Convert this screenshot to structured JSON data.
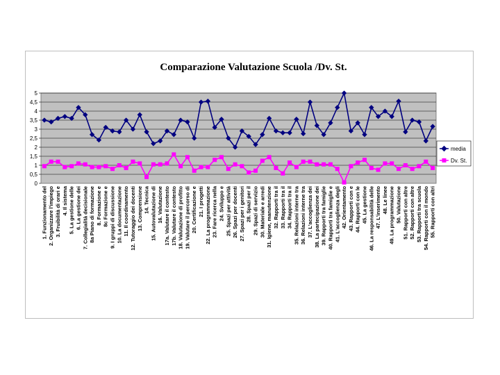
{
  "chart_data": {
    "type": "line",
    "title": "Comparazione Valutazione Scuola /Dv. St.",
    "xlabel": "",
    "ylabel": "",
    "ylim": [
      0,
      5
    ],
    "yticks": [
      "0",
      "0,5",
      "1",
      "1,5",
      "2",
      "2,5",
      "3",
      "3,5",
      "4",
      "4,5",
      "5"
    ],
    "grid": true,
    "legend_position": "right",
    "categories": [
      "1. Funzionamento del",
      "2. Organizzare l'impiego",
      "3. Fruibilità di orari e",
      "4. Il sistema",
      "5. La gestione delle",
      "6. La gestione dei",
      "7. Collegialità decisionale",
      "8a Piano di formazione",
      "8. Formazione e",
      "8c Formazione e",
      "9. I gruppi di discussione",
      "10. La documentazione",
      "11. Il coordinamento",
      "12. Tutoraggio dei docenti",
      "13. Comprensione",
      "14. Tecnica",
      "15. Autovalutazione di",
      "16. Valutazione",
      "17a. Valutare il contesto",
      "17b. Valutare il contesto",
      "18. Valutazione di profitto",
      "19. Valutare il percorso di",
      "20. Certificazione e",
      "21. I progetti",
      "22. La programmazione",
      "23. Fare ricerca nella",
      "24. Sviluppo e",
      "25. Spazi per attività",
      "26. Spazi per docenti",
      "27. Spazi per i genitori",
      "28. Spazi per il",
      "29. Spazi di servizio",
      "30. Materiale e arredi",
      "31. Igiene, manutenzione",
      "32. Rapporti tra il",
      "33. Rapporti tra il",
      "34. Rapporti tra il",
      "35. Relazioni interne tra",
      "36. Relazioni interne tra",
      "37. L'accoglienza dei",
      "38. La partecipazione dei",
      "39. Rapporti tra famiglie",
      "40. Rapporti tra famiglie e",
      "41. L'accoglienza degli",
      "42. Orientamento",
      "43. Rapporti con e",
      "44. Rapporti con le",
      "45. La gestione",
      "46. La responsabilità delle",
      "47. L'inserimento",
      "48. Le linee",
      "49. La programmazione",
      "50. Valutazione",
      "51. Rapporti con altre",
      "52. Rapporti con altre",
      "53. Rapporti tra scuola",
      "54. Rapporti con il mondo",
      "55. Rapporti con altri"
    ],
    "series": [
      {
        "name": "media",
        "color": "#000080",
        "marker": "diamond",
        "values": [
          3.5,
          3.4,
          3.6,
          3.7,
          3.6,
          4.2,
          3.8,
          2.7,
          2.4,
          3.1,
          2.9,
          2.85,
          3.5,
          3.0,
          3.8,
          2.85,
          2.2,
          2.35,
          2.9,
          2.7,
          3.5,
          3.4,
          2.5,
          4.5,
          4.55,
          3.1,
          3.55,
          2.5,
          2.0,
          2.9,
          2.6,
          2.15,
          2.7,
          3.6,
          2.9,
          2.8,
          2.8,
          3.55,
          2.75,
          4.5,
          3.2,
          2.7,
          3.35,
          4.2,
          5.0,
          2.9,
          3.35,
          2.7,
          4.2,
          3.7,
          4.0,
          3.7,
          4.55,
          2.85,
          3.5,
          3.4,
          2.35,
          3.15
        ]
      },
      {
        "name": "Dv. St.",
        "color": "#ff00ff",
        "marker": "square",
        "values": [
          0.95,
          1.2,
          1.2,
          0.9,
          0.95,
          1.1,
          1.05,
          0.9,
          0.9,
          0.95,
          0.8,
          1.0,
          0.85,
          1.2,
          1.1,
          0.35,
          1.05,
          1.05,
          1.1,
          1.6,
          0.95,
          1.45,
          0.7,
          0.9,
          0.9,
          1.3,
          1.45,
          0.8,
          1.05,
          0.95,
          0.6,
          0.7,
          1.25,
          1.45,
          0.85,
          0.55,
          1.15,
          0.9,
          1.2,
          1.2,
          1.05,
          1.05,
          1.05,
          0.8,
          0.05,
          0.95,
          1.15,
          1.3,
          0.85,
          0.75,
          1.1,
          1.1,
          0.8,
          1.0,
          0.8,
          0.95,
          1.2,
          0.85
        ]
      }
    ]
  }
}
